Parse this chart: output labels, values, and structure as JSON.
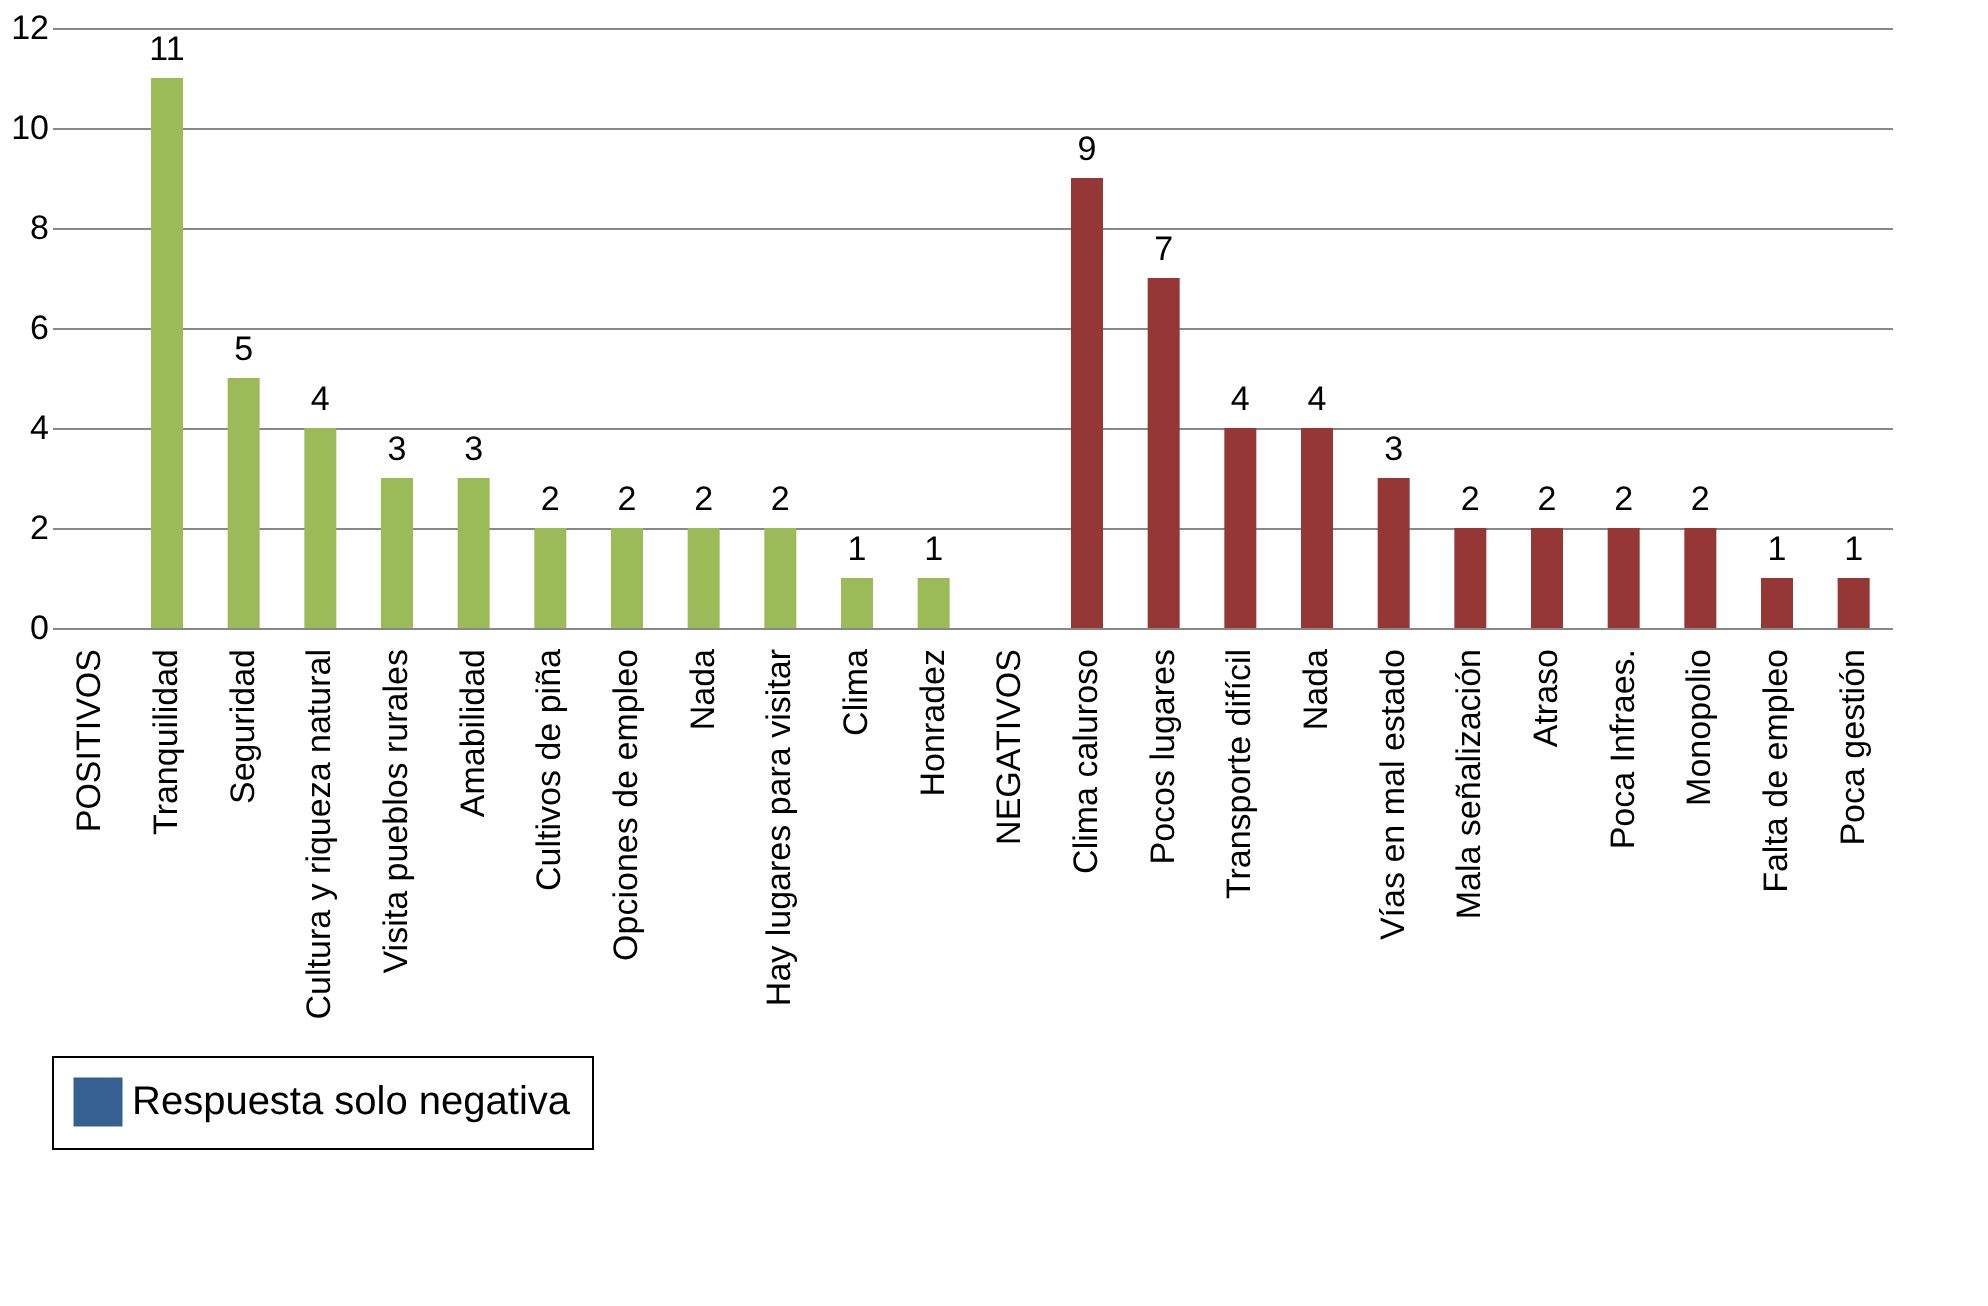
{
  "chart_data": {
    "type": "bar",
    "categories": [
      "POSITIVOS",
      "Tranquilidad",
      "Seguridad",
      "Cultura y riqueza natural",
      "Visita pueblos rurales",
      "Amabilidad",
      "Cultivos de piña",
      "Opciones de empleo",
      "Nada",
      "Hay lugares para visitar",
      "Clima",
      "Honradez",
      "NEGATIVOS",
      "Clima caluroso",
      "Pocos lugares",
      "Transporte difícil",
      "Nada",
      "Vías en mal estado",
      "Mala señalización",
      "Atraso",
      "Poca Infraes.",
      "Monopolio",
      "Falta de empleo",
      "Poca gestión"
    ],
    "series": [
      {
        "values": [
          null,
          11,
          5,
          4,
          3,
          3,
          2,
          2,
          2,
          2,
          1,
          1,
          null,
          9,
          7,
          4,
          4,
          3,
          2,
          2,
          2,
          2,
          1,
          1
        ],
        "colors": [
          "#9bbb59",
          "#9bbb59",
          "#9bbb59",
          "#9bbb59",
          "#9bbb59",
          "#9bbb59",
          "#9bbb59",
          "#9bbb59",
          "#9bbb59",
          "#9bbb59",
          "#9bbb59",
          "#9bbb59",
          "#953735",
          "#953735",
          "#953735",
          "#953735",
          "#953735",
          "#953735",
          "#953735",
          "#953735",
          "#953735",
          "#953735",
          "#953735",
          "#953735"
        ]
      },
      {
        "name": "Respuesta solo negativa",
        "color": "#376092",
        "values": [
          null,
          null,
          null,
          null,
          null,
          null,
          null,
          null,
          null,
          null,
          null,
          null,
          null,
          null,
          null,
          null,
          null,
          null,
          null,
          null,
          null,
          null,
          null,
          null
        ]
      }
    ],
    "ylim": [
      0,
      12
    ],
    "yticks": [
      0,
      2,
      4,
      6,
      8,
      10,
      12
    ],
    "grid": "y",
    "data_labels": true,
    "legend": "bottom"
  }
}
